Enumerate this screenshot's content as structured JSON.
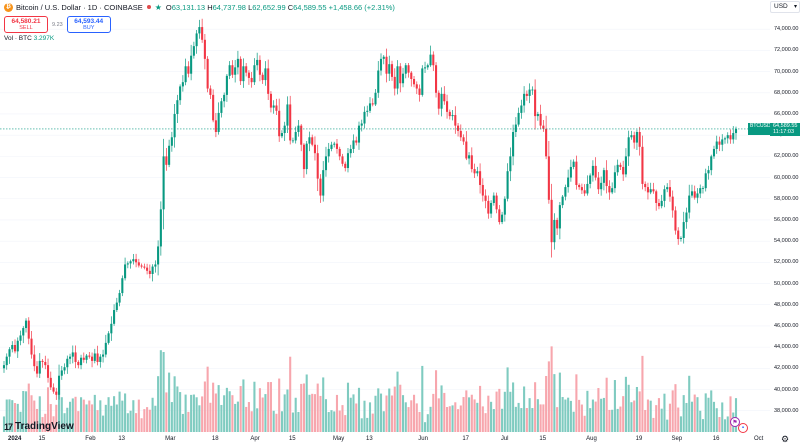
{
  "header": {
    "logo_glyph": "₿",
    "symbol": "Bitcoin / U.S. Dollar · 1D · COINBASE",
    "open_label": "O",
    "open": "63,131.13",
    "high_label": "H",
    "high": "64,737.98",
    "low_label": "L",
    "low": "62,652.99",
    "close_label": "C",
    "close": "64,589.55",
    "change": "+1,458.66 (+2.31%)"
  },
  "trade": {
    "sell_price": "64,580.21",
    "sell_label": "SELL",
    "spread": "9.23",
    "buy_price": "64,593.44",
    "buy_label": "BUY"
  },
  "volume": {
    "label": "Vol · BTC",
    "value": "3.297K"
  },
  "price_axis": {
    "currency": "USD",
    "ticks": [
      "74,000.00",
      "72,000.00",
      "70,000.00",
      "68,000.00",
      "66,000.00",
      "64,000.00",
      "62,000.00",
      "60,000.00",
      "58,000.00",
      "56,000.00",
      "54,000.00",
      "52,000.00",
      "50,000.00",
      "48,000.00",
      "46,000.00",
      "44,000.00",
      "42,000.00",
      "40,000.00",
      "38,000.00"
    ],
    "last_price": "64,589.55",
    "countdown": "11:17:03",
    "last_symbol": "BTCUSD"
  },
  "time_axis": {
    "labels": [
      "2024",
      "15",
      "Feb",
      "13",
      "Mar",
      "18",
      "Apr",
      "15",
      "May",
      "13",
      "Jun",
      "17",
      "Jul",
      "15",
      "Aug",
      "19",
      "Sep",
      "16",
      "Oct"
    ]
  },
  "branding": {
    "name": "TradingView",
    "mark": "17"
  },
  "colors": {
    "up": "#089981",
    "down": "#f23645",
    "up_volume": "#7fcbc0",
    "down_volume": "#f7a6ad",
    "grid": "#f0f3fa",
    "price_line": "#089981"
  },
  "chart_data": {
    "type": "candlestick",
    "title": "Bitcoin / U.S. Dollar · 1D · COINBASE",
    "ylim": [
      37500,
      76000
    ],
    "x_start": "2024-01-01",
    "last_close": 64589.55,
    "closes": [
      42300,
      43100,
      43800,
      44200,
      43600,
      44600,
      45100,
      45800,
      46500,
      44800,
      43300,
      42200,
      41500,
      42700,
      42600,
      42300,
      41100,
      40200,
      39800,
      39500,
      41300,
      41800,
      42100,
      42900,
      43100,
      43500,
      42600,
      42300,
      43000,
      42800,
      43200,
      43100,
      42700,
      43400,
      42600,
      43100,
      43300,
      44400,
      45300,
      46200,
      47500,
      48200,
      49100,
      50500,
      51800,
      51900,
      52100,
      52300,
      52000,
      51700,
      51600,
      51500,
      51200,
      50900,
      51600,
      51800,
      53500,
      57000,
      62000,
      61200,
      63000,
      63800,
      66000,
      67300,
      68600,
      69000,
      70500,
      69800,
      71500,
      72400,
      73600,
      74200,
      73000,
      71200,
      68400,
      67800,
      65400,
      64300,
      66100,
      67200,
      67800,
      69600,
      70600,
      69700,
      70400,
      71200,
      69100,
      70500,
      69900,
      69400,
      69000,
      70600,
      71100,
      69700,
      69200,
      70300,
      67900,
      66600,
      66800,
      66300,
      63900,
      64200,
      64900,
      66900,
      63500,
      63500,
      64300,
      64900,
      63100,
      60800,
      63200,
      63800,
      63100,
      62300,
      59900,
      58300,
      60700,
      62000,
      62700,
      63100,
      63200,
      62700,
      62000,
      61300,
      60900,
      62300,
      62700,
      63500,
      63300,
      64900,
      65100,
      66200,
      66300,
      67000,
      66900,
      68000,
      70100,
      71200,
      71400,
      69800,
      70700,
      69500,
      68400,
      70500,
      68900,
      69800,
      70600,
      69900,
      69300,
      68800,
      68400,
      67800,
      70300,
      70400,
      70600,
      71600,
      70600,
      68000,
      66500,
      67900,
      67200,
      66200,
      65800,
      65900,
      64900,
      64400,
      63800,
      63400,
      61800,
      62100,
      60800,
      60400,
      60600,
      59300,
      58300,
      57800,
      56600,
      57600,
      58300,
      57000,
      55800,
      56500,
      58000,
      60600,
      62000,
      64300,
      65000,
      66100,
      66800,
      67900,
      67700,
      68300,
      68300,
      65800,
      66000,
      64900,
      64600,
      62000,
      57900,
      53900,
      56000,
      55200,
      57400,
      58200,
      59100,
      60000,
      61000,
      61500,
      59300,
      59100,
      58800,
      58500,
      59400,
      60200,
      61100,
      60000,
      58900,
      59500,
      60700,
      59200,
      58600,
      59000,
      60500,
      61200,
      61000,
      60300,
      62000,
      63800,
      64000,
      63300,
      64300,
      62900,
      59400,
      59100,
      58600,
      58900,
      58700,
      57600,
      57300,
      57800,
      58900,
      59100,
      58200,
      56900,
      55000,
      54200,
      54300,
      55800,
      56700,
      58300,
      58700,
      58100,
      58500,
      59000,
      59000,
      60400,
      60700,
      62000,
      62700,
      63400,
      63100,
      63600,
      63700,
      64000,
      63600,
      64200,
      64600
    ]
  }
}
